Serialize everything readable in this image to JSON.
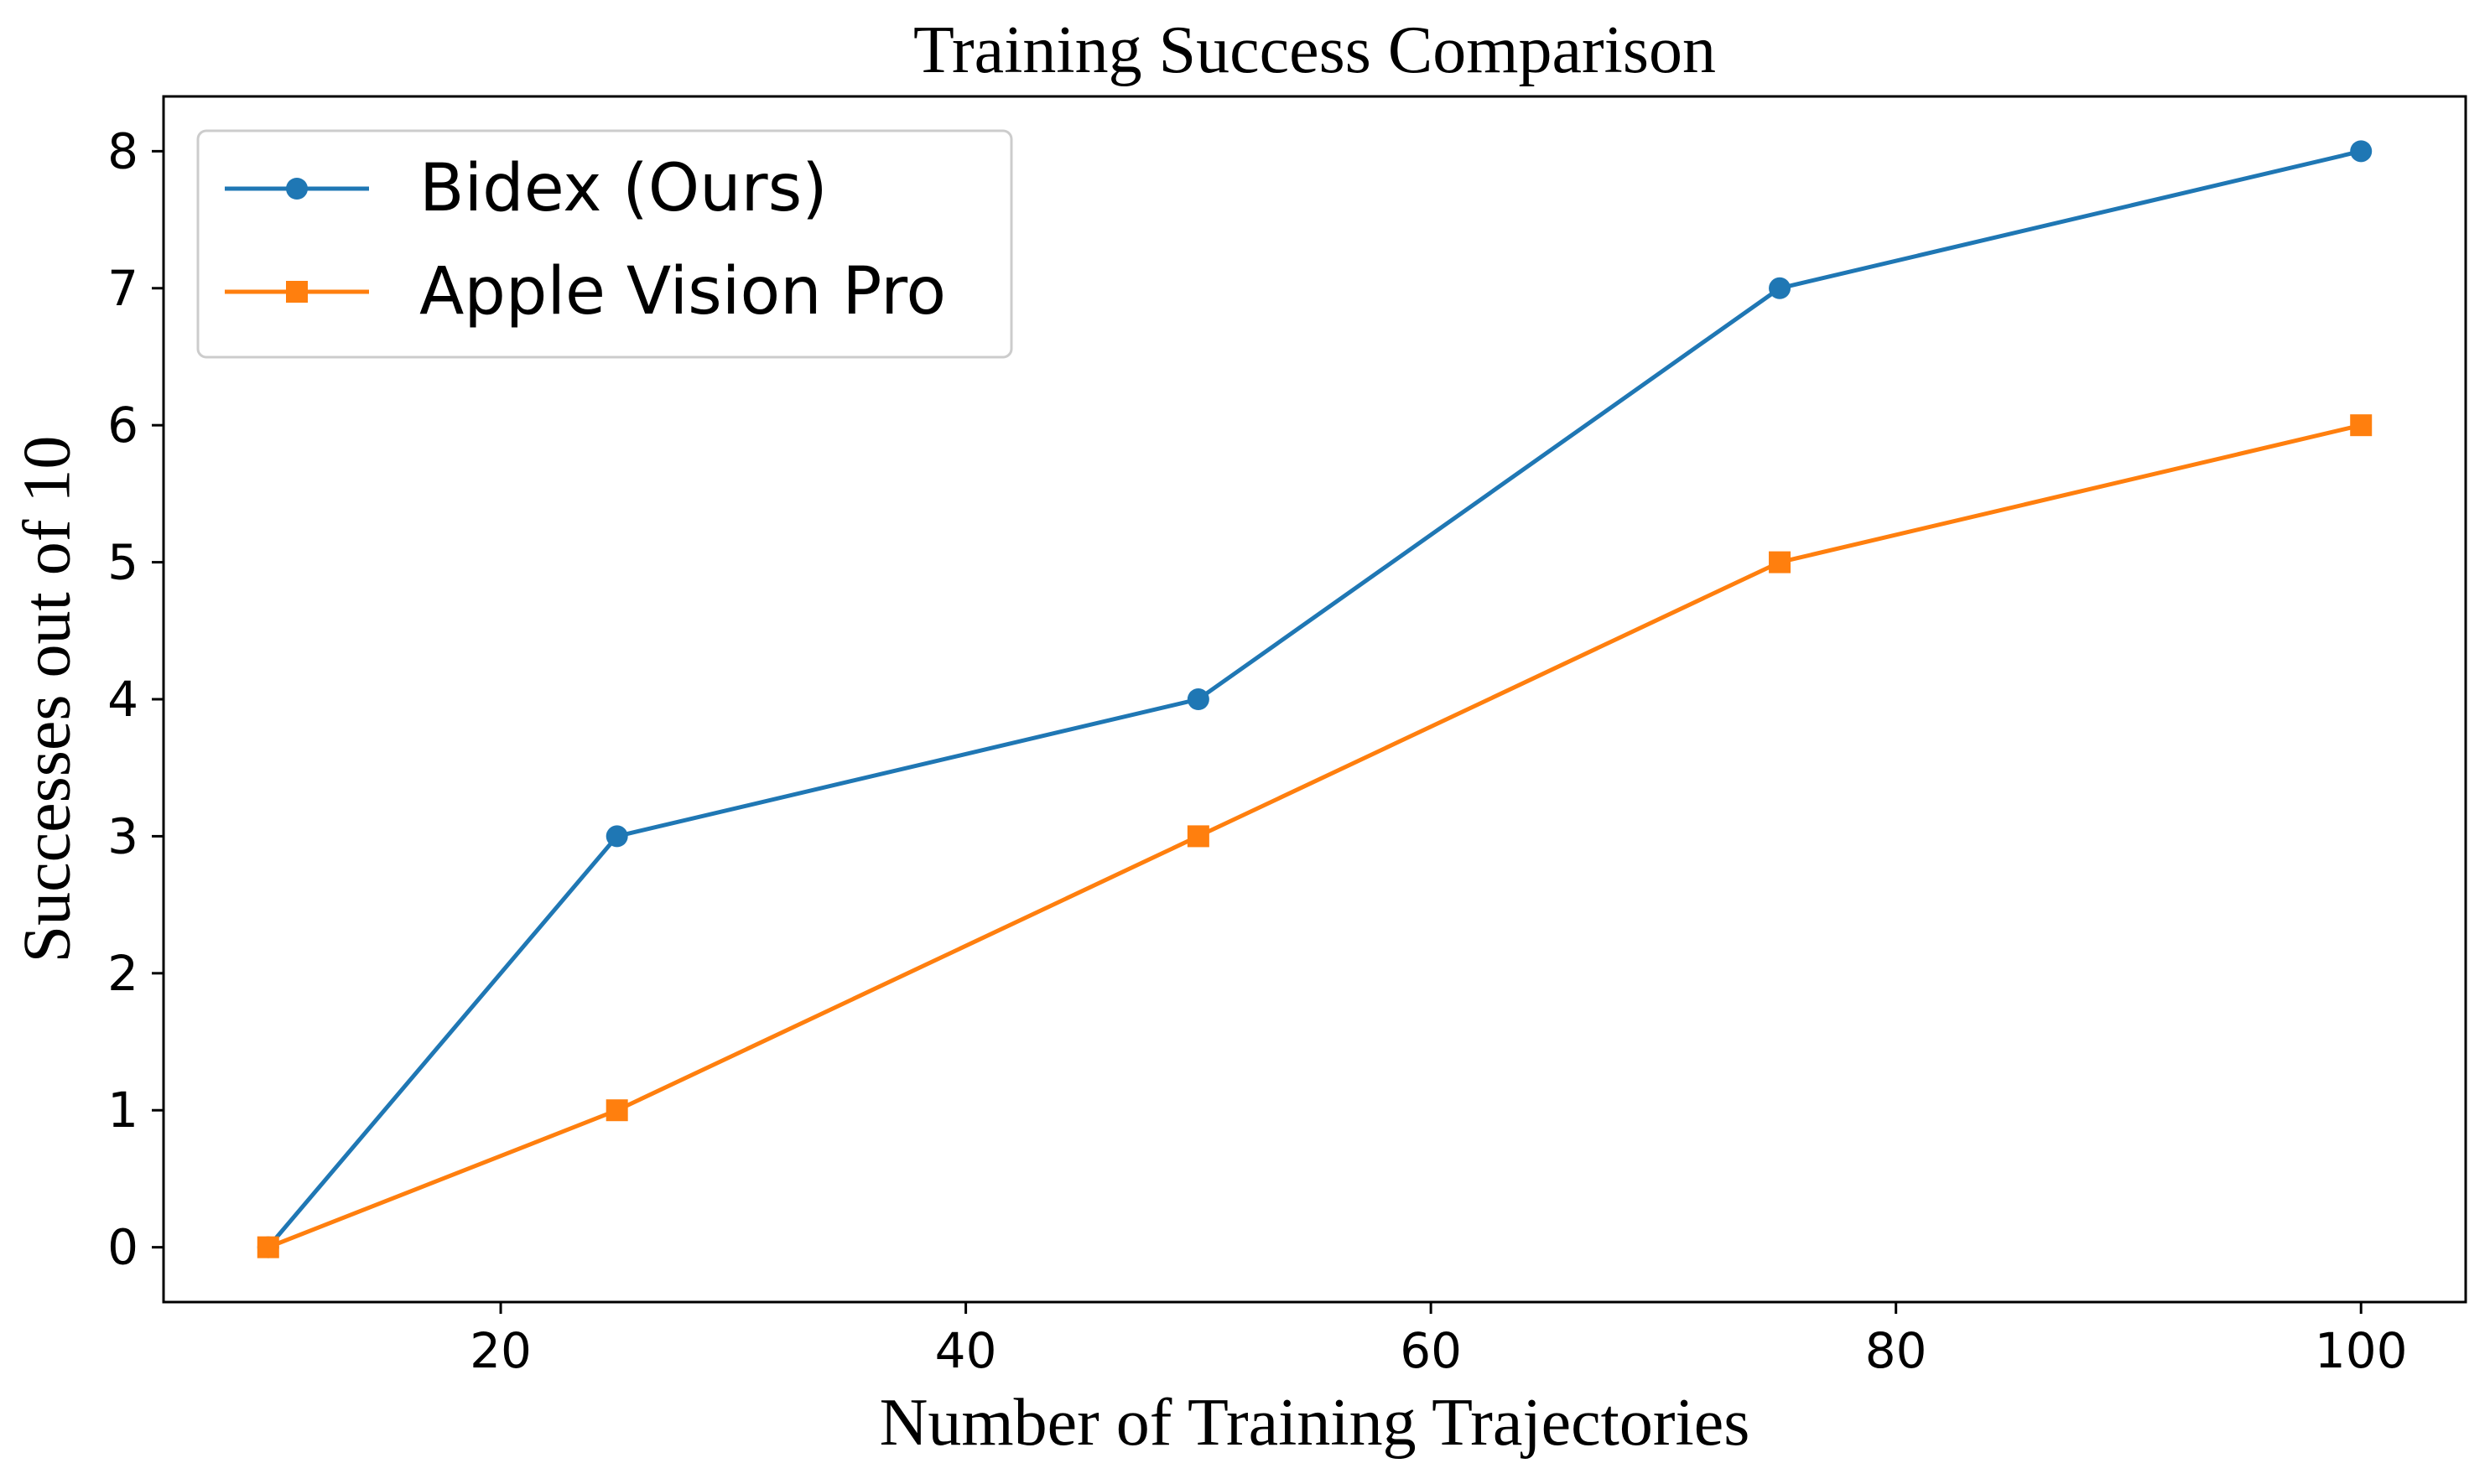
{
  "chart_data": {
    "type": "line",
    "title": "Training Success Comparison",
    "xlabel": "Number of Training Trajectories",
    "ylabel": "Successes out of 10",
    "x": [
      10,
      25,
      50,
      75,
      100
    ],
    "xlim": [
      5.5,
      104.5
    ],
    "ylim": [
      -0.4,
      8.4
    ],
    "xticks": [
      20,
      40,
      60,
      80,
      100
    ],
    "yticks": [
      0,
      1,
      2,
      3,
      4,
      5,
      6,
      7,
      8
    ],
    "grid": false,
    "legend_position": "upper-left",
    "series": [
      {
        "name": "Bidex (Ours)",
        "values": [
          0,
          3,
          4,
          7,
          8
        ],
        "color": "#1f77b4",
        "marker": "circle"
      },
      {
        "name": "Apple Vision Pro",
        "values": [
          0,
          1,
          3,
          5,
          6
        ],
        "color": "#ff7f0e",
        "marker": "square"
      }
    ]
  }
}
